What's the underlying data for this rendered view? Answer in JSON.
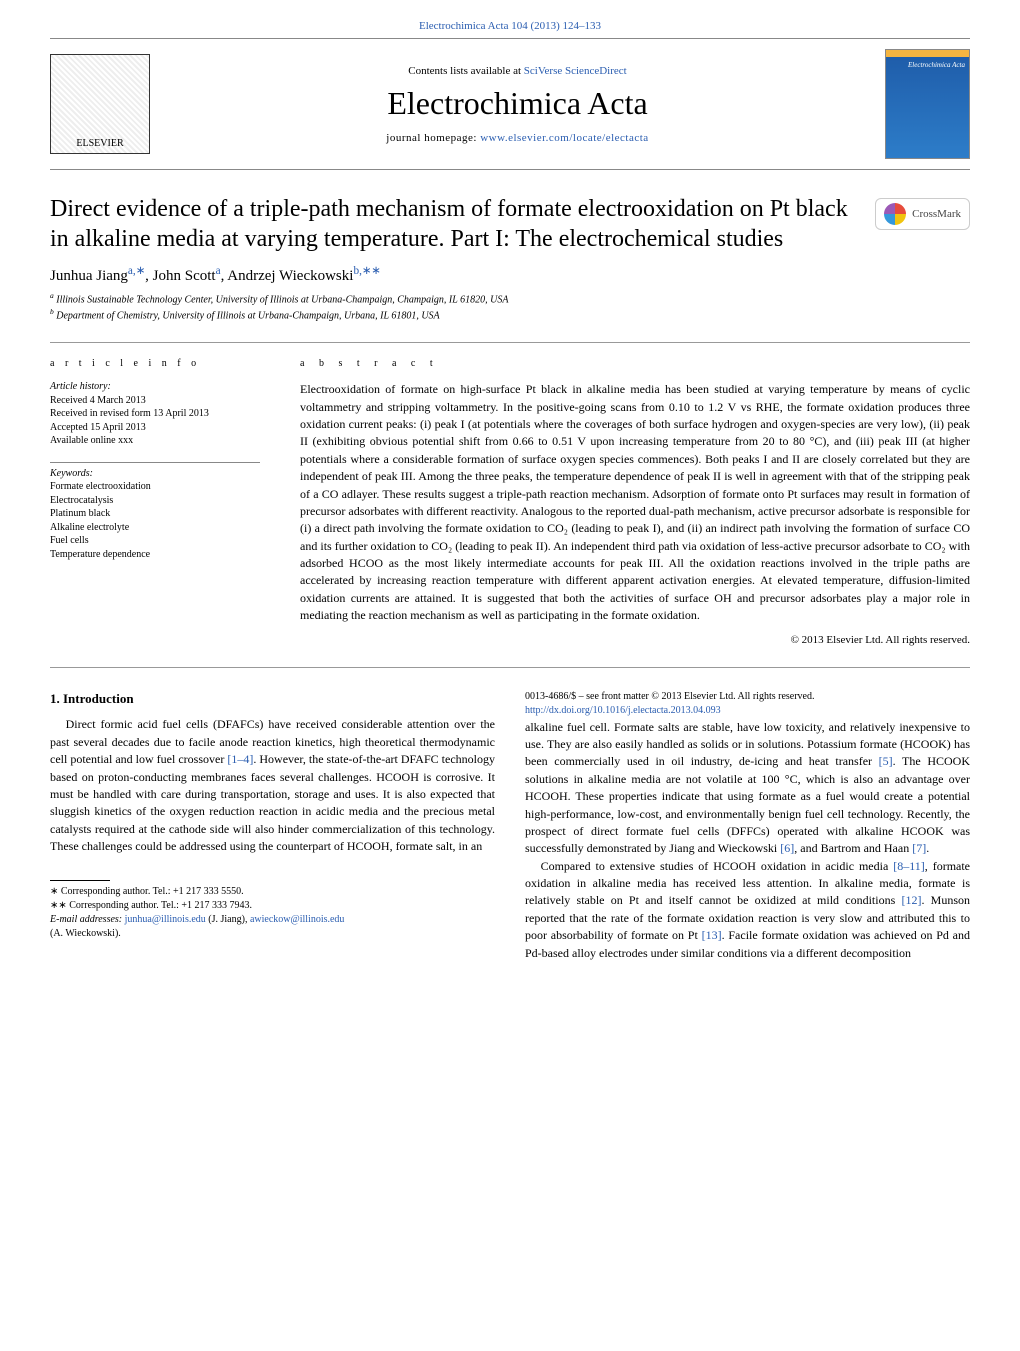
{
  "header": {
    "topLink": "Electrochimica Acta 104 (2013) 124–133",
    "contentsLine": "Contents lists available at",
    "contentsLinkText": "SciVerse ScienceDirect",
    "journalTitle": "Electrochimica Acta",
    "homepageLabel": "journal homepage:",
    "homepageUrl": "www.elsevier.com/locate/electacta",
    "publisherLogoText": "ELSEVIER",
    "coverTitle": "Electrochimica Acta"
  },
  "crossmark": {
    "label": "CrossMark"
  },
  "paper": {
    "title": "Direct evidence of a triple-path mechanism of formate electrooxidation on Pt black in alkaline media at varying temperature. Part I: The electrochemical studies",
    "authorsHtml": "Junhua Jiang",
    "authorSupA": "a,∗",
    "author2": ", John Scott",
    "authorSupA2": "a",
    "author3": ", Andrzej Wieckowski",
    "authorSupB": "b,∗∗",
    "affilA": "Illinois Sustainable Technology Center, University of Illinois at Urbana-Champaign, Champaign, IL 61820, USA",
    "affilB": "Department of Chemistry, University of Illinois at Urbana-Champaign, Urbana, IL 61801, USA"
  },
  "articleInfo": {
    "heading": "a r t i c l e    i n f o",
    "historyLabel": "Article history:",
    "received": "Received 4 March 2013",
    "revised": "Received in revised form 13 April 2013",
    "accepted": "Accepted 15 April 2013",
    "online": "Available online xxx",
    "keywordsLabel": "Keywords:",
    "kw1": "Formate electrooxidation",
    "kw2": "Electrocatalysis",
    "kw3": "Platinum black",
    "kw4": "Alkaline electrolyte",
    "kw5": "Fuel cells",
    "kw6": "Temperature dependence"
  },
  "abstract": {
    "heading": "a b s t r a c t",
    "text": "Electrooxidation of formate on high-surface Pt black in alkaline media has been studied at varying temperature by means of cyclic voltammetry and stripping voltammetry. In the positive-going scans from 0.10 to 1.2 V vs RHE, the formate oxidation produces three oxidation current peaks: (i) peak I (at potentials where the coverages of both surface hydrogen and oxygen-species are very low), (ii) peak II (exhibiting obvious potential shift from 0.66 to 0.51 V upon increasing temperature from 20 to 80 °C), and (iii) peak III (at higher potentials where a considerable formation of surface oxygen species commences). Both peaks I and II are closely correlated but they are independent of peak III. Among the three peaks, the temperature dependence of peak II is well in agreement with that of the stripping peak of a CO adlayer. These results suggest a triple-path reaction mechanism. Adsorption of formate onto Pt surfaces may result in formation of precursor adsorbates with different reactivity. Analogous to the reported dual-path mechanism, active precursor adsorbate is responsible for (i) a direct path involving the formate oxidation to CO₂ (leading to peak I), and (ii) an indirect path involving the formation of surface CO and its further oxidation to CO₂ (leading to peak II). An independent third path via oxidation of less-active precursor adsorbate to CO₂ with adsorbed HCOO as the most likely intermediate accounts for peak III. All the oxidation reactions involved in the triple paths are accelerated by increasing reaction temperature with different apparent activation energies. At elevated temperature, diffusion-limited oxidation currents are attained. It is suggested that both the activities of surface OH and precursor adsorbates play a major role in mediating the reaction mechanism as well as participating in the formate oxidation.",
    "copyright": "© 2013 Elsevier Ltd. All rights reserved."
  },
  "body": {
    "sec1Heading": "1.  Introduction",
    "p1": "Direct formic acid fuel cells (DFAFCs) have received considerable attention over the past several decades due to facile anode reaction kinetics, high theoretical thermodynamic cell potential and low fuel crossover ",
    "p1ref": "[1–4]",
    "p1b": ". However, the state-of-the-art DFAFC technology based on proton-conducting membranes faces several challenges. HCOOH is corrosive. It must be handled with care during transportation, storage and uses. It is also expected that sluggish kinetics of the oxygen reduction reaction in acidic media and the precious metal catalysts required at the cathode side will also hinder commercialization of this technology. These challenges could be addressed using the counterpart of HCOOH, formate salt, in an",
    "p2a": "alkaline fuel cell. Formate salts are stable, have low toxicity, and relatively inexpensive to use. They are also easily handled as solids or in solutions. Potassium formate (HCOOK) has been commercially used in oil industry, de-icing and heat transfer ",
    "p2ref1": "[5]",
    "p2b": ". The HCOOK solutions in alkaline media are not volatile at 100 °C, which is also an advantage over HCOOH. These properties indicate that using formate as a fuel would create a potential high-performance, low-cost, and environmentally benign fuel cell technology. Recently, the prospect of direct formate fuel cells (DFFCs) operated with alkaline HCOOK was successfully demonstrated by Jiang and Wieckowski ",
    "p2ref2": "[6]",
    "p2c": ", and Bartrom and Haan ",
    "p2ref3": "[7]",
    "p2d": ".",
    "p3a": "Compared to extensive studies of HCOOH oxidation in acidic media ",
    "p3ref1": "[8–11]",
    "p3b": ", formate oxidation in alkaline media has received less attention. In alkaline media, formate is relatively stable on Pt and itself cannot be oxidized at mild conditions ",
    "p3ref2": "[12]",
    "p3c": ". Munson reported that the rate of the formate oxidation reaction is very slow and attributed this to poor absorbability of formate on Pt ",
    "p3ref3": "[13]",
    "p3d": ". Facile formate oxidation was achieved on Pd and Pd-based alloy electrodes under similar conditions via a different decomposition"
  },
  "footnotes": {
    "c1": "∗ Corresponding author. Tel.: +1 217 333 5550.",
    "c2": "∗∗ Corresponding author. Tel.: +1 217 333 7943.",
    "emailsLabel": "E-mail addresses:",
    "email1": "junhua@illinois.edu",
    "email1who": " (J. Jiang), ",
    "email2": "awieckow@illinois.edu",
    "email2who": "(A. Wieckowski).",
    "issn": "0013-4686/$ – see front matter © 2013 Elsevier Ltd. All rights reserved.",
    "doi": "http://dx.doi.org/10.1016/j.electacta.2013.04.093"
  },
  "colors": {
    "link": "#2a5db0",
    "rule": "#888888",
    "coverTop": "#f5b540",
    "coverBg1": "#1e5ba8",
    "coverBg2": "#2d7dc9"
  },
  "layout": {
    "pageWidthPx": 1020,
    "pageHeightPx": 1351,
    "bodyColumns": 2,
    "bodyColumnGapPx": 30,
    "bodyFontSizePt": 9,
    "titleFontSizePt": 18,
    "journalTitleFontSizePt": 24,
    "infoLeftWidthPx": 210
  }
}
